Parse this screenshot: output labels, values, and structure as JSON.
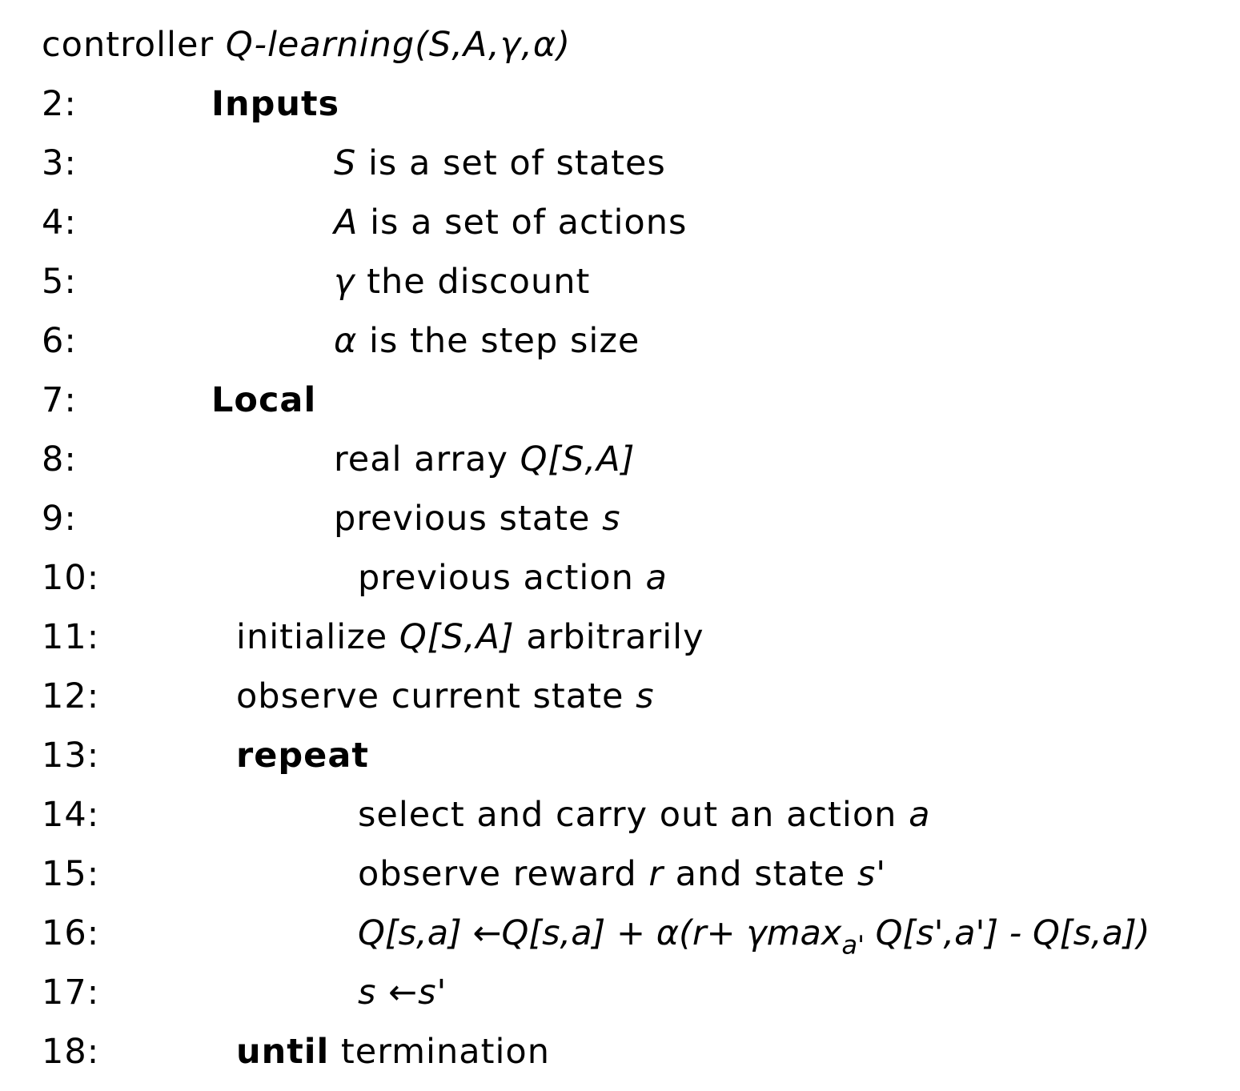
{
  "header": {
    "keyword": "controller",
    "name": "Q-learning",
    "params": "(S,A,γ,α)"
  },
  "lines": [
    {
      "num": "2:",
      "keyword": "Inputs"
    },
    {
      "num": "3:",
      "var": "S",
      "text": " is a set of states"
    },
    {
      "num": "4:",
      "var": "A",
      "text": " is a set of actions"
    },
    {
      "num": "5:",
      "var": "γ",
      "text": " the discount"
    },
    {
      "num": "6:",
      "var": "α",
      "text": " is the step size"
    },
    {
      "num": "7:",
      "keyword": "Local"
    },
    {
      "num": "8:",
      "text": "real array ",
      "var": "Q[S,A]"
    },
    {
      "num": "9:",
      "text": "previous state ",
      "var": "s"
    },
    {
      "num": "10:",
      "text": "previous action ",
      "var": "a"
    },
    {
      "num": "11:",
      "text": "initialize ",
      "var": "Q[S,A]",
      "text2": " arbitrarily"
    },
    {
      "num": "12:",
      "text": "observe current state ",
      "var": "s"
    },
    {
      "num": "13:",
      "keyword": "repeat"
    },
    {
      "num": "14:",
      "text": "select and carry out an action ",
      "var": "a"
    },
    {
      "num": "15:",
      "text": "observe reward ",
      "var": "r",
      "text2": " and state ",
      "var2": "s'"
    },
    {
      "num": "16:",
      "formula_a": "Q[s,a] ←Q[s,a] + α(r+ γmax",
      "formula_sub": "a'",
      "formula_b": " Q[s',a'] - Q[s,a])"
    },
    {
      "num": "17:",
      "formula_a": "s ←s'"
    },
    {
      "num": "18:",
      "keyword": "until",
      "text": " termination"
    }
  ]
}
